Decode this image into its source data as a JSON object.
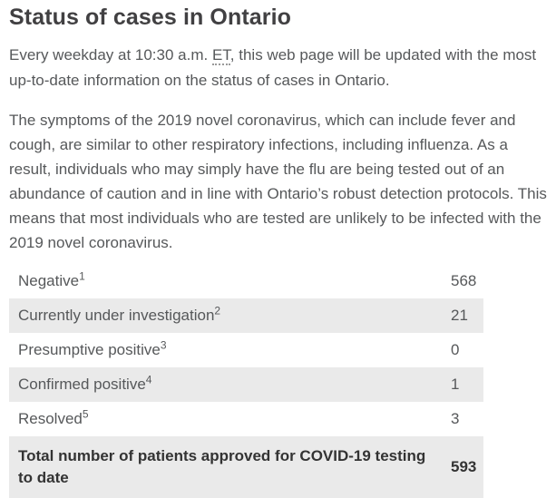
{
  "page": {
    "title": "Status of cases in Ontario",
    "intro": {
      "before_abbr": "Every weekday at 10:30 a.m. ",
      "abbr": "ET",
      "after_abbr": ", this web page will be updated with the most up-to-date information on the status of cases in Ontario."
    },
    "symptoms_paragraph": "The symptoms of the 2019 novel coronavirus, which can include fever and cough, are similar to other respiratory infections, including influenza. As a result, individuals who may simply have the flu are being tested out of an abundance of caution and in line with Ontario’s robust detection protocols. This means that most individuals who are tested are unlikely to be infected with the 2019 novel coronavirus."
  },
  "table": {
    "rows": [
      {
        "label": "Negative",
        "footnote": "1",
        "value": "568"
      },
      {
        "label": "Currently under investigation",
        "footnote": "2",
        "value": "21"
      },
      {
        "label": "Presumptive positive",
        "footnote": "3",
        "value": "0"
      },
      {
        "label": "Confirmed positive",
        "footnote": "4",
        "value": "1"
      },
      {
        "label": "Resolved",
        "footnote": "5",
        "value": "3"
      }
    ],
    "total_row": {
      "label": "Total number of patients approved for COVID-19 testing to date",
      "value": "593"
    }
  },
  "colors": {
    "heading_text": "#414042",
    "body_text": "#56585a",
    "row_shade": "#eaeaea",
    "total_text": "#333333",
    "page_background": "#ffffff"
  }
}
